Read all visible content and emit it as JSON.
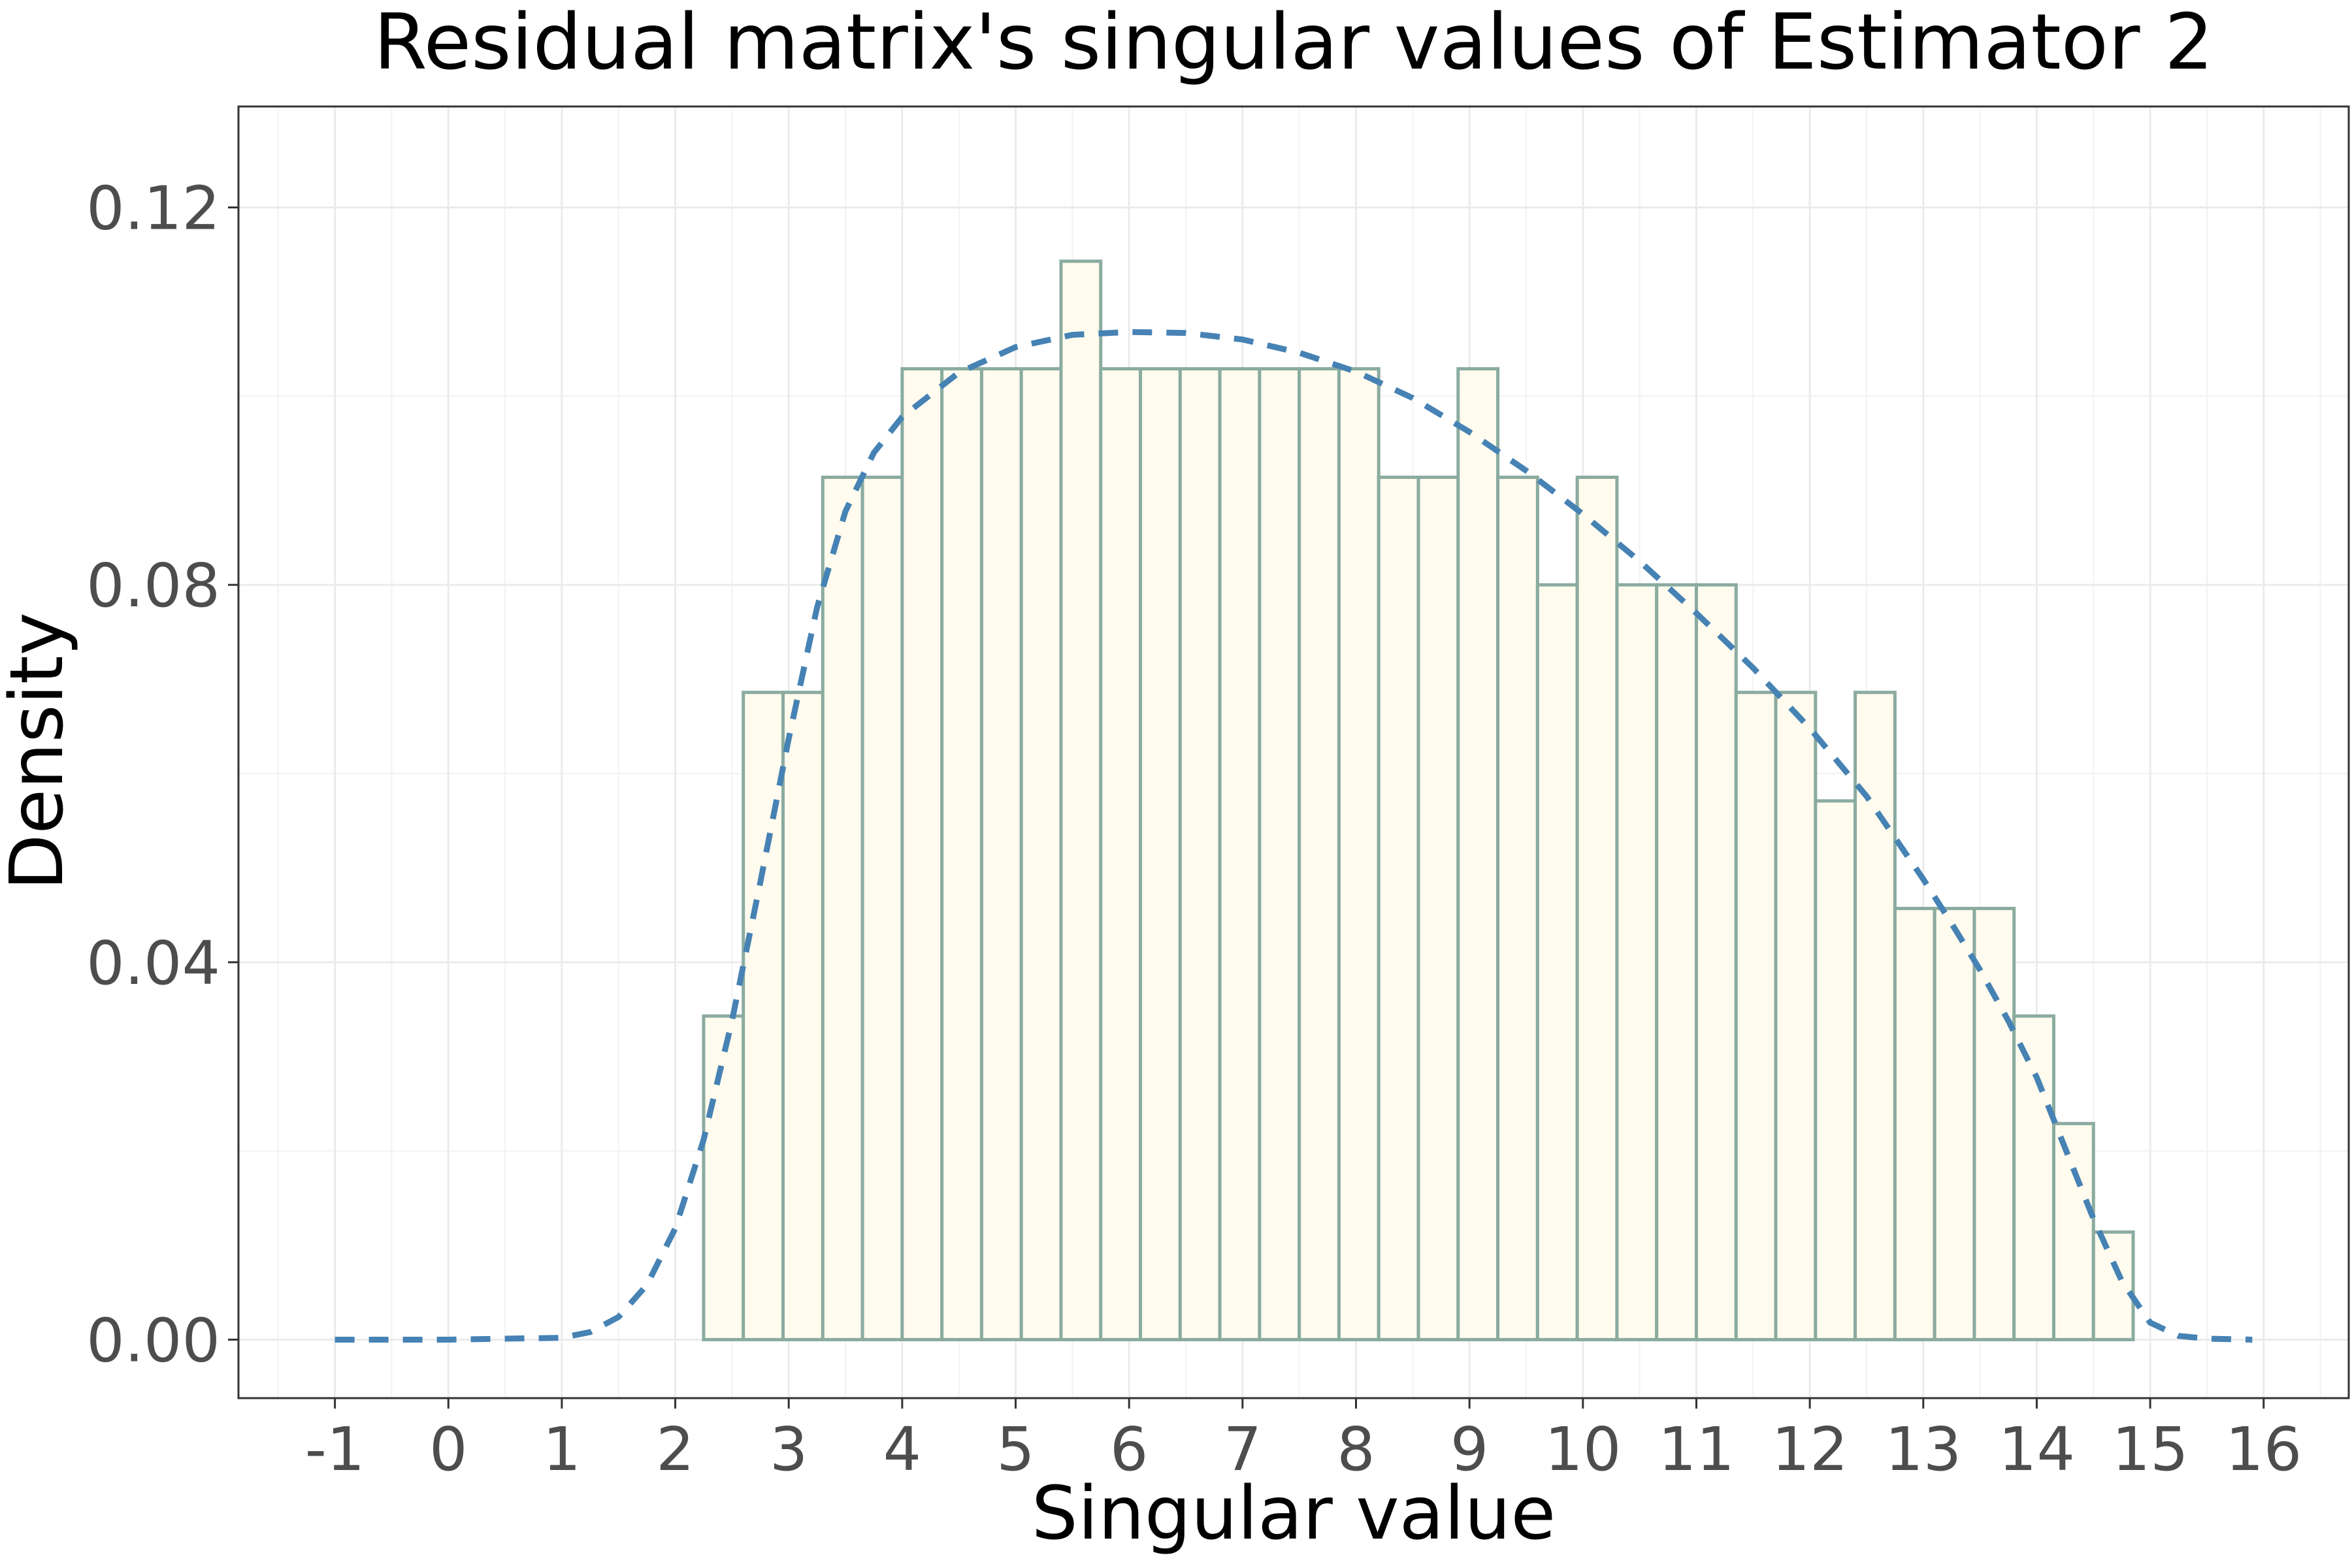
{
  "chart_data": {
    "type": "bar",
    "title": "Residual matrix's singular values of Estimator 2",
    "xlabel": "Singular value",
    "ylabel": "Density",
    "xlim": [
      -1.85,
      16.75
    ],
    "ylim": [
      -0.0062,
      0.1307
    ],
    "x_ticks": [
      -1,
      0,
      1,
      2,
      3,
      4,
      5,
      6,
      7,
      8,
      9,
      10,
      11,
      12,
      13,
      14,
      15,
      16
    ],
    "x_tick_labels": [
      "-1",
      "0",
      "1",
      "2",
      "3",
      "4",
      "5",
      "6",
      "7",
      "8",
      "9",
      "10",
      "11",
      "12",
      "13",
      "14",
      "15",
      "16"
    ],
    "y_ticks": [
      0,
      0.04,
      0.08,
      0.12
    ],
    "y_tick_labels": [
      "0.00",
      "0.04",
      "0.08",
      "0.12"
    ],
    "grid": true,
    "legend": "none",
    "bin_width": 0.35,
    "bin_start": 2.25,
    "bins": [
      {
        "x0": 2.25,
        "x1": 2.6,
        "density": 0.0343
      },
      {
        "x0": 2.6,
        "x1": 2.95,
        "density": 0.0686
      },
      {
        "x0": 2.95,
        "x1": 3.3,
        "density": 0.0686
      },
      {
        "x0": 3.3,
        "x1": 3.65,
        "density": 0.0914
      },
      {
        "x0": 3.65,
        "x1": 4.0,
        "density": 0.0914
      },
      {
        "x0": 4.0,
        "x1": 4.35,
        "density": 0.1029
      },
      {
        "x0": 4.35,
        "x1": 4.7,
        "density": 0.1029
      },
      {
        "x0": 4.7,
        "x1": 5.05,
        "density": 0.1029
      },
      {
        "x0": 5.05,
        "x1": 5.4,
        "density": 0.1029
      },
      {
        "x0": 5.4,
        "x1": 5.75,
        "density": 0.1143
      },
      {
        "x0": 5.75,
        "x1": 6.1,
        "density": 0.1029
      },
      {
        "x0": 6.1,
        "x1": 6.45,
        "density": 0.1029
      },
      {
        "x0": 6.45,
        "x1": 6.8,
        "density": 0.1029
      },
      {
        "x0": 6.8,
        "x1": 7.15,
        "density": 0.1029
      },
      {
        "x0": 7.15,
        "x1": 7.5,
        "density": 0.1029
      },
      {
        "x0": 7.5,
        "x1": 7.85,
        "density": 0.1029
      },
      {
        "x0": 7.85,
        "x1": 8.2,
        "density": 0.1029
      },
      {
        "x0": 8.2,
        "x1": 8.55,
        "density": 0.0914
      },
      {
        "x0": 8.55,
        "x1": 8.9,
        "density": 0.0914
      },
      {
        "x0": 8.9,
        "x1": 9.25,
        "density": 0.1029
      },
      {
        "x0": 9.25,
        "x1": 9.6,
        "density": 0.0914
      },
      {
        "x0": 9.6,
        "x1": 9.95,
        "density": 0.08
      },
      {
        "x0": 9.95,
        "x1": 10.3,
        "density": 0.0914
      },
      {
        "x0": 10.3,
        "x1": 10.65,
        "density": 0.08
      },
      {
        "x0": 10.65,
        "x1": 11.0,
        "density": 0.08
      },
      {
        "x0": 11.0,
        "x1": 11.35,
        "density": 0.08
      },
      {
        "x0": 11.35,
        "x1": 11.7,
        "density": 0.0686
      },
      {
        "x0": 11.7,
        "x1": 12.05,
        "density": 0.0686
      },
      {
        "x0": 12.05,
        "x1": 12.4,
        "density": 0.0571
      },
      {
        "x0": 12.4,
        "x1": 12.75,
        "density": 0.0686
      },
      {
        "x0": 12.75,
        "x1": 13.1,
        "density": 0.0457
      },
      {
        "x0": 13.1,
        "x1": 13.45,
        "density": 0.0457
      },
      {
        "x0": 13.45,
        "x1": 13.8,
        "density": 0.0457
      },
      {
        "x0": 13.8,
        "x1": 14.15,
        "density": 0.0343
      },
      {
        "x0": 14.15,
        "x1": 14.5,
        "density": 0.0229
      },
      {
        "x0": 14.5,
        "x1": 14.85,
        "density": 0.0114
      }
    ],
    "density_curve": {
      "style": "dashed",
      "color": "#4682b4",
      "x": [
        -1,
        0,
        1,
        1.25,
        1.5,
        1.75,
        2.0,
        2.25,
        2.5,
        2.75,
        3.0,
        3.25,
        3.5,
        3.75,
        4.0,
        4.5,
        5.0,
        5.5,
        6.0,
        6.5,
        7.0,
        7.5,
        8.0,
        8.5,
        9.0,
        9.5,
        10.0,
        10.5,
        11.0,
        11.5,
        12.0,
        12.5,
        13.0,
        13.25,
        13.5,
        13.75,
        14.0,
        14.25,
        14.5,
        14.75,
        15.0,
        15.25,
        15.5,
        15.9
      ],
      "y": [
        0,
        0,
        0.0002,
        0.0008,
        0.0024,
        0.0058,
        0.0118,
        0.0212,
        0.0338,
        0.0485,
        0.0637,
        0.0776,
        0.0878,
        0.094,
        0.0978,
        0.1025,
        0.1052,
        0.1065,
        0.1068,
        0.1067,
        0.106,
        0.1046,
        0.1026,
        0.0998,
        0.0962,
        0.0921,
        0.0875,
        0.0825,
        0.077,
        0.0712,
        0.0648,
        0.0576,
        0.0488,
        0.0441,
        0.0392,
        0.0338,
        0.0278,
        0.0203,
        0.0128,
        0.0062,
        0.0018,
        0.0004,
        0.0001,
        0
      ]
    }
  }
}
